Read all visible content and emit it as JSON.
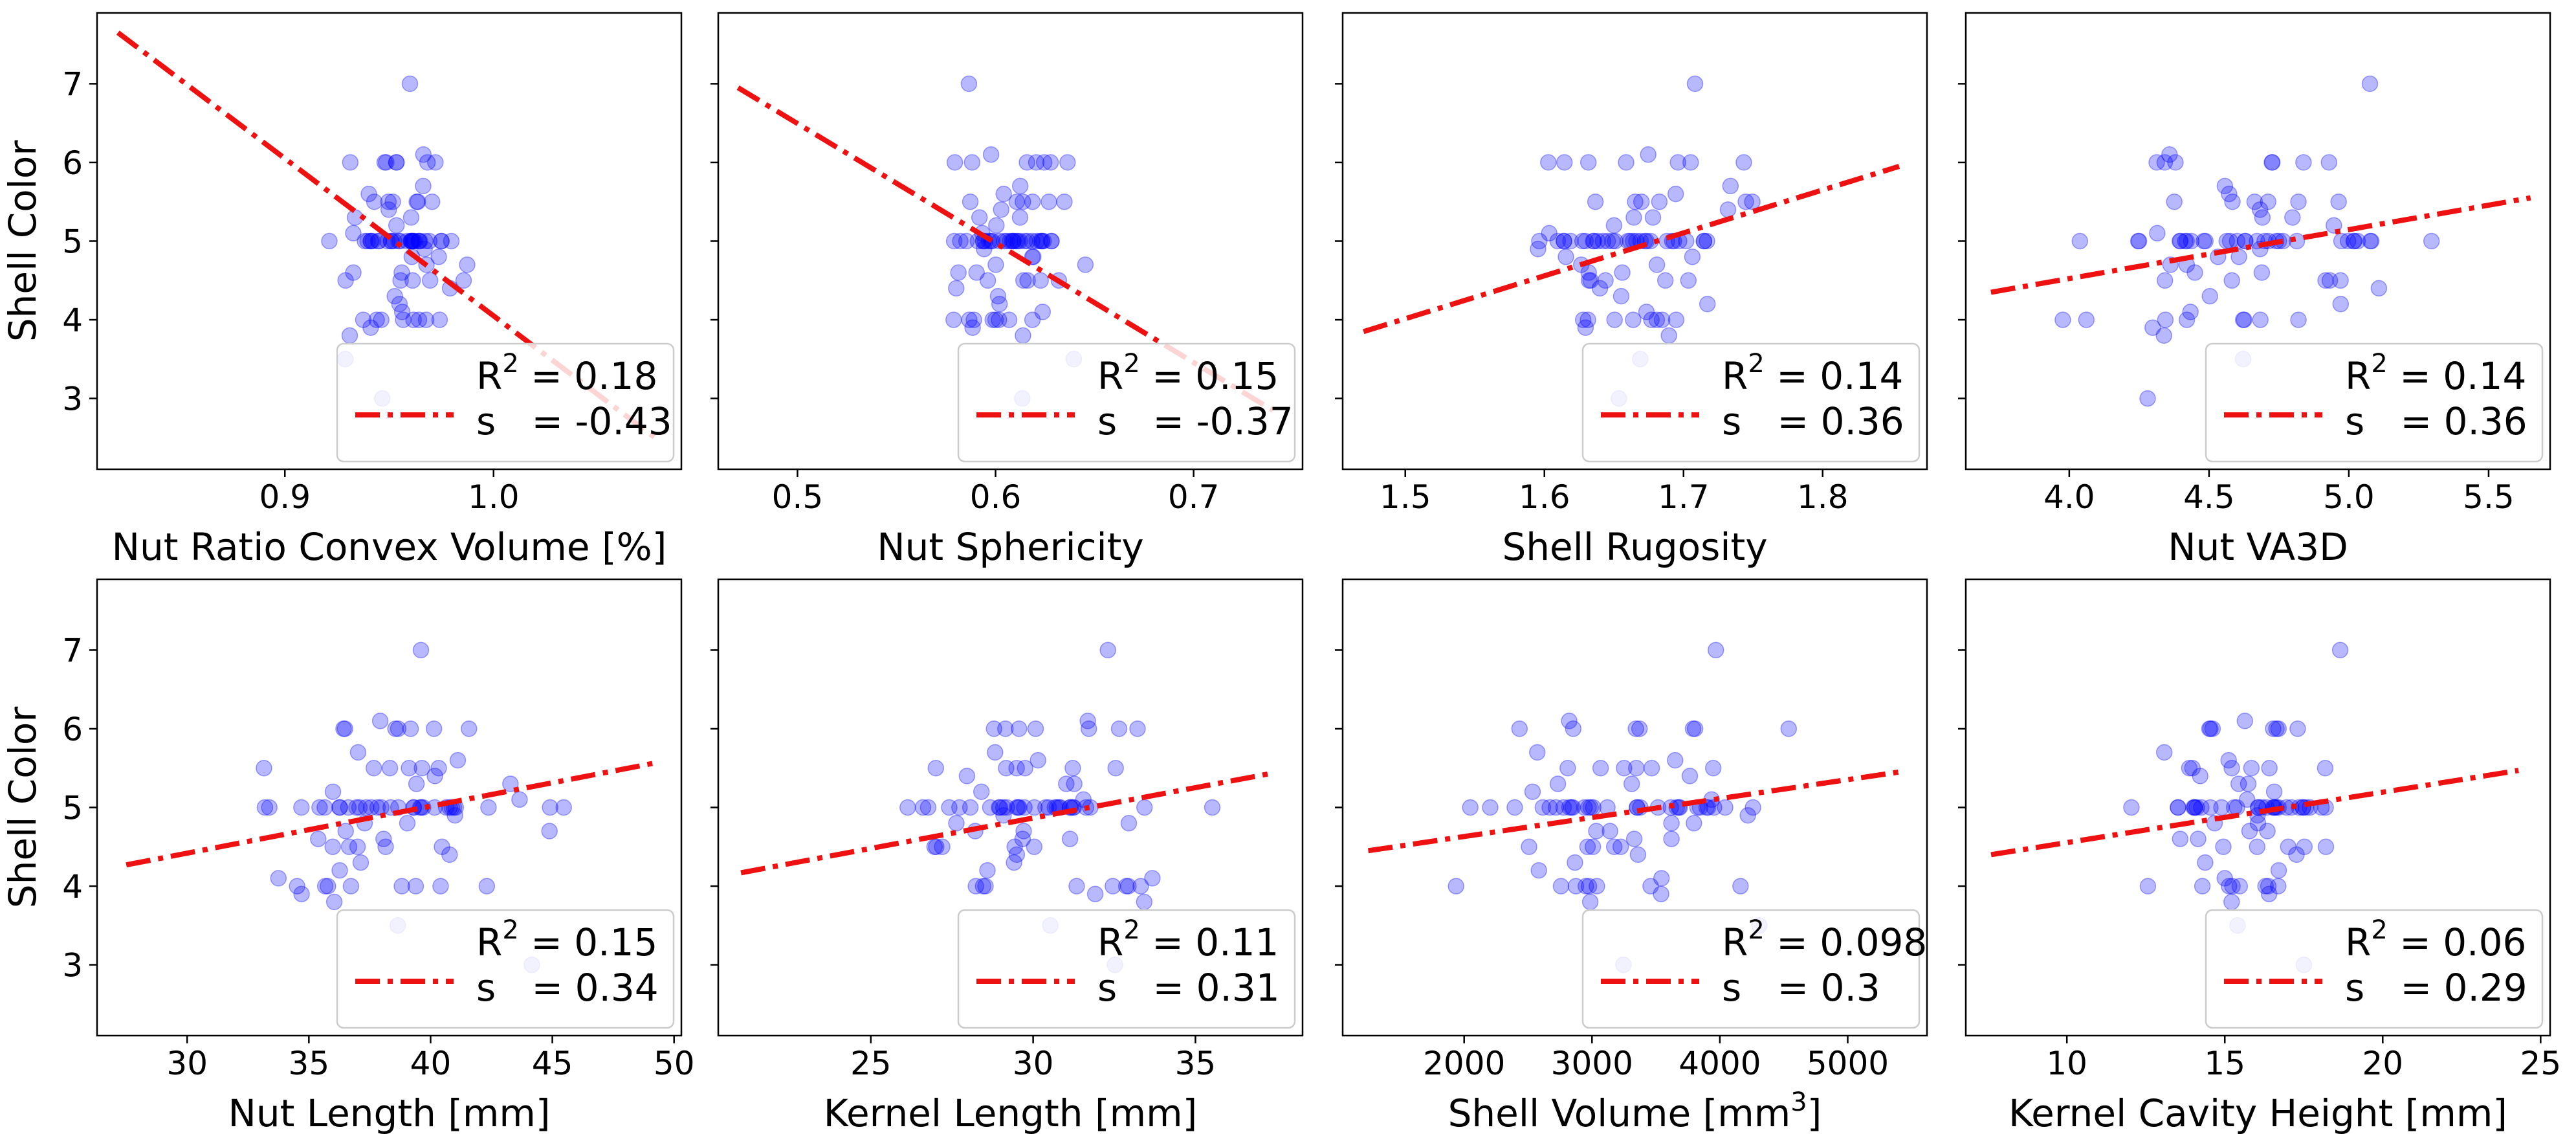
{
  "figure": {
    "ylabel": "Shell Color",
    "colors": {
      "points": "#0000ff",
      "fit_line": "#ee1111",
      "axes": "#000000",
      "legend_border": "#cccccc"
    }
  },
  "chart_data": [
    {
      "type": "scatter",
      "xlabel": "Nut Ratio Convex Volume [%]",
      "ylabel": "Shell Color",
      "xlim": [
        0.81,
        1.09
      ],
      "ylim": [
        2.1,
        7.9
      ],
      "xticks": [
        {
          "v": 0.9,
          "label": "0.9"
        },
        {
          "v": 1.0,
          "label": "1.0"
        }
      ],
      "yticks": [
        {
          "v": 3,
          "label": "3"
        },
        {
          "v": 4,
          "label": "4"
        },
        {
          "v": 5,
          "label": "5"
        },
        {
          "v": 6,
          "label": "6"
        },
        {
          "v": 7,
          "label": "7"
        }
      ],
      "legend": {
        "r2_value": "0.18",
        "s_value": "-0.43",
        "position": "lower-right"
      },
      "fit": {
        "x": [
          0.82,
          1.08
        ],
        "y": [
          7.65,
          2.45
        ]
      },
      "points": {
        "x_center": 0.955,
        "x_spread": 0.018,
        "y_values": [
          7,
          6,
          6,
          6,
          6,
          6,
          6,
          6,
          6.1,
          5.7,
          5.6,
          5.5,
          5.5,
          5.5,
          5.5,
          5.5,
          5.5,
          5.4,
          5.3,
          5.3,
          5.2,
          5.1,
          5,
          5,
          5,
          5,
          5,
          5,
          5,
          5,
          5,
          5,
          5,
          5,
          5,
          5,
          5,
          5,
          5,
          5,
          5,
          5,
          5,
          5,
          5,
          5,
          5,
          5,
          5,
          5,
          5,
          5,
          4.9,
          4.8,
          4.8,
          4.7,
          4.7,
          4.6,
          4.6,
          4.5,
          4.5,
          4.5,
          4.5,
          4.5,
          4.4,
          4.3,
          4.2,
          4.1,
          4,
          4,
          4,
          4,
          4,
          4,
          4,
          4,
          3.9,
          3.8,
          3.5,
          3
        ]
      }
    },
    {
      "type": "scatter",
      "xlabel": "Nut Sphericity",
      "ylabel": "",
      "xlim": [
        0.46,
        0.755
      ],
      "ylim": [
        2.1,
        7.9
      ],
      "xticks": [
        {
          "v": 0.5,
          "label": "0.5"
        },
        {
          "v": 0.6,
          "label": "0.6"
        },
        {
          "v": 0.7,
          "label": "0.7"
        }
      ],
      "yticks": [
        {
          "v": 3,
          "label": "3"
        },
        {
          "v": 4,
          "label": "4"
        },
        {
          "v": 5,
          "label": "5"
        },
        {
          "v": 6,
          "label": "6"
        },
        {
          "v": 7,
          "label": "7"
        }
      ],
      "legend": {
        "r2_value": "0.15",
        "s_value": "-0.37",
        "position": "lower-right"
      },
      "fit": {
        "x": [
          0.47,
          0.74
        ],
        "y": [
          6.95,
          2.85
        ]
      },
      "points": {
        "x_center": 0.605,
        "x_spread": 0.02,
        "y_values": [
          7,
          6,
          6,
          6,
          6,
          6,
          6,
          6,
          6.1,
          5.7,
          5.6,
          5.5,
          5.5,
          5.5,
          5.5,
          5.5,
          5.5,
          5.4,
          5.3,
          5.3,
          5.2,
          5.1,
          5,
          5,
          5,
          5,
          5,
          5,
          5,
          5,
          5,
          5,
          5,
          5,
          5,
          5,
          5,
          5,
          5,
          5,
          5,
          5,
          5,
          5,
          5,
          5,
          5,
          5,
          5,
          5,
          5,
          5,
          4.9,
          4.8,
          4.8,
          4.7,
          4.7,
          4.6,
          4.6,
          4.5,
          4.5,
          4.5,
          4.5,
          4.5,
          4.4,
          4.3,
          4.2,
          4.1,
          4,
          4,
          4,
          4,
          4,
          4,
          4,
          4,
          3.9,
          3.8,
          3.5,
          3
        ]
      }
    },
    {
      "type": "scatter",
      "xlabel": "Shell Rugosity",
      "ylabel": "",
      "xlim": [
        1.455,
        1.875
      ],
      "ylim": [
        2.1,
        7.9
      ],
      "xticks": [
        {
          "v": 1.5,
          "label": "1.5"
        },
        {
          "v": 1.6,
          "label": "1.6"
        },
        {
          "v": 1.7,
          "label": "1.7"
        },
        {
          "v": 1.8,
          "label": "1.8"
        }
      ],
      "yticks": [
        {
          "v": 3,
          "label": "3"
        },
        {
          "v": 4,
          "label": "4"
        },
        {
          "v": 5,
          "label": "5"
        },
        {
          "v": 6,
          "label": "6"
        },
        {
          "v": 7,
          "label": "7"
        }
      ],
      "legend": {
        "r2_value": "0.14",
        "s_value": "0.36",
        "position": "lower-right"
      },
      "fit": {
        "x": [
          1.47,
          1.855
        ],
        "y": [
          3.85,
          5.95
        ]
      },
      "points": {
        "x_center": 1.665,
        "x_spread": 0.04,
        "y_values": [
          7,
          6,
          6,
          6,
          6,
          6,
          6,
          6,
          6.1,
          5.7,
          5.6,
          5.5,
          5.5,
          5.5,
          5.5,
          5.5,
          5.5,
          5.4,
          5.3,
          5.3,
          5.2,
          5.1,
          5,
          5,
          5,
          5,
          5,
          5,
          5,
          5,
          5,
          5,
          5,
          5,
          5,
          5,
          5,
          5,
          5,
          5,
          5,
          5,
          5,
          5,
          5,
          5,
          5,
          5,
          5,
          5,
          5,
          5,
          4.9,
          4.8,
          4.8,
          4.7,
          4.7,
          4.6,
          4.6,
          4.5,
          4.5,
          4.5,
          4.5,
          4.5,
          4.4,
          4.3,
          4.2,
          4.1,
          4,
          4,
          4,
          4,
          4,
          4,
          4,
          4,
          3.9,
          3.8,
          3.5,
          3
        ]
      }
    },
    {
      "type": "scatter",
      "xlabel": "Nut VA3D",
      "ylabel": "",
      "xlim": [
        3.63,
        5.72
      ],
      "ylim": [
        2.1,
        7.9
      ],
      "xticks": [
        {
          "v": 4.0,
          "label": "4.0"
        },
        {
          "v": 4.5,
          "label": "4.5"
        },
        {
          "v": 5.0,
          "label": "5.0"
        },
        {
          "v": 5.5,
          "label": "5.5"
        }
      ],
      "yticks": [
        {
          "v": 3,
          "label": "3"
        },
        {
          "v": 4,
          "label": "4"
        },
        {
          "v": 5,
          "label": "5"
        },
        {
          "v": 6,
          "label": "6"
        },
        {
          "v": 7,
          "label": "7"
        }
      ],
      "legend": {
        "r2_value": "0.14",
        "s_value": "0.36",
        "position": "lower-right"
      },
      "fit": {
        "x": [
          3.72,
          5.65
        ],
        "y": [
          4.35,
          5.55
        ]
      },
      "points": {
        "x_center": 4.6,
        "x_spread": 0.32,
        "y_values": [
          7,
          6,
          6,
          6,
          6,
          6,
          6,
          6,
          6.1,
          5.7,
          5.6,
          5.5,
          5.5,
          5.5,
          5.5,
          5.5,
          5.5,
          5.4,
          5.3,
          5.3,
          5.2,
          5.1,
          5,
          5,
          5,
          5,
          5,
          5,
          5,
          5,
          5,
          5,
          5,
          5,
          5,
          5,
          5,
          5,
          5,
          5,
          5,
          5,
          5,
          5,
          5,
          5,
          5,
          5,
          5,
          5,
          5,
          5,
          4.9,
          4.8,
          4.8,
          4.7,
          4.7,
          4.6,
          4.6,
          4.5,
          4.5,
          4.5,
          4.5,
          4.5,
          4.4,
          4.3,
          4.2,
          4.1,
          4,
          4,
          4,
          4,
          4,
          4,
          4,
          4,
          3.9,
          3.8,
          3.5,
          3
        ]
      }
    },
    {
      "type": "scatter",
      "xlabel": "Nut Length [mm]",
      "ylabel": "Shell Color",
      "xlim": [
        26.3,
        50.3
      ],
      "ylim": [
        2.1,
        7.9
      ],
      "xticks": [
        {
          "v": 30,
          "label": "30"
        },
        {
          "v": 35,
          "label": "35"
        },
        {
          "v": 40,
          "label": "40"
        },
        {
          "v": 45,
          "label": "45"
        },
        {
          "v": 50,
          "label": "50"
        }
      ],
      "yticks": [
        {
          "v": 3,
          "label": "3"
        },
        {
          "v": 4,
          "label": "4"
        },
        {
          "v": 5,
          "label": "5"
        },
        {
          "v": 6,
          "label": "6"
        },
        {
          "v": 7,
          "label": "7"
        }
      ],
      "legend": {
        "r2_value": "0.15",
        "s_value": "0.34",
        "position": "lower-right"
      },
      "fit": {
        "x": [
          27.5,
          49.3
        ],
        "y": [
          4.27,
          5.57
        ]
      },
      "points": {
        "x_center": 38.5,
        "x_spread": 3.8,
        "y_values": [
          7,
          6,
          6,
          6,
          6,
          6,
          6,
          6,
          6.1,
          5.7,
          5.6,
          5.5,
          5.5,
          5.5,
          5.5,
          5.5,
          5.5,
          5.4,
          5.3,
          5.3,
          5.2,
          5.1,
          5,
          5,
          5,
          5,
          5,
          5,
          5,
          5,
          5,
          5,
          5,
          5,
          5,
          5,
          5,
          5,
          5,
          5,
          5,
          5,
          5,
          5,
          5,
          5,
          5,
          5,
          5,
          5,
          5,
          5,
          4.9,
          4.8,
          4.8,
          4.7,
          4.7,
          4.6,
          4.6,
          4.5,
          4.5,
          4.5,
          4.5,
          4.5,
          4.4,
          4.3,
          4.2,
          4.1,
          4,
          4,
          4,
          4,
          4,
          4,
          4,
          4,
          3.9,
          3.8,
          3.5,
          3
        ]
      }
    },
    {
      "type": "scatter",
      "xlabel": "Kernel Length [mm]",
      "ylabel": "",
      "xlim": [
        20.3,
        38.3
      ],
      "ylim": [
        2.1,
        7.9
      ],
      "xticks": [
        {
          "v": 25,
          "label": "25"
        },
        {
          "v": 30,
          "label": "30"
        },
        {
          "v": 35,
          "label": "35"
        }
      ],
      "yticks": [
        {
          "v": 3,
          "label": "3"
        },
        {
          "v": 4,
          "label": "4"
        },
        {
          "v": 5,
          "label": "5"
        },
        {
          "v": 6,
          "label": "6"
        },
        {
          "v": 7,
          "label": "7"
        }
      ],
      "legend": {
        "r2_value": "0.11",
        "s_value": "0.31",
        "position": "lower-right"
      },
      "fit": {
        "x": [
          21,
          37.3
        ],
        "y": [
          4.17,
          5.43
        ]
      },
      "points": {
        "x_center": 30.5,
        "x_spread": 2.6,
        "y_values": [
          7,
          6,
          6,
          6,
          6,
          6,
          6,
          6,
          6.1,
          5.7,
          5.6,
          5.5,
          5.5,
          5.5,
          5.5,
          5.5,
          5.5,
          5.4,
          5.3,
          5.3,
          5.2,
          5.1,
          5,
          5,
          5,
          5,
          5,
          5,
          5,
          5,
          5,
          5,
          5,
          5,
          5,
          5,
          5,
          5,
          5,
          5,
          5,
          5,
          5,
          5,
          5,
          5,
          5,
          5,
          5,
          5,
          5,
          5,
          4.9,
          4.8,
          4.8,
          4.7,
          4.7,
          4.6,
          4.6,
          4.5,
          4.5,
          4.5,
          4.5,
          4.5,
          4.4,
          4.3,
          4.2,
          4.1,
          4,
          4,
          4,
          4,
          4,
          4,
          4,
          4,
          3.9,
          3.8,
          3.5,
          3
        ]
      }
    },
    {
      "type": "scatter",
      "xlabel": "Shell Volume [mm",
      "xlabel_sup": "3",
      "xlabel_suffix": "]",
      "ylabel": "",
      "xlim": [
        1050,
        5620
      ],
      "ylim": [
        2.1,
        7.9
      ],
      "xticks": [
        {
          "v": 2000,
          "label": "2000"
        },
        {
          "v": 3000,
          "label": "3000"
        },
        {
          "v": 4000,
          "label": "4000"
        },
        {
          "v": 5000,
          "label": "5000"
        }
      ],
      "yticks": [
        {
          "v": 3,
          "label": "3"
        },
        {
          "v": 4,
          "label": "4"
        },
        {
          "v": 5,
          "label": "5"
        },
        {
          "v": 6,
          "label": "6"
        },
        {
          "v": 7,
          "label": "7"
        }
      ],
      "legend": {
        "r2_value": "0.098",
        "s_value": "0.3",
        "position": "lower-right"
      },
      "fit": {
        "x": [
          1250,
          5400
        ],
        "y": [
          4.45,
          5.45
        ]
      },
      "points": {
        "x_center": 3200,
        "x_spread": 700,
        "y_values": [
          7,
          6,
          6,
          6,
          6,
          6,
          6,
          6,
          6.1,
          5.7,
          5.6,
          5.5,
          5.5,
          5.5,
          5.5,
          5.5,
          5.5,
          5.4,
          5.3,
          5.3,
          5.2,
          5.1,
          5,
          5,
          5,
          5,
          5,
          5,
          5,
          5,
          5,
          5,
          5,
          5,
          5,
          5,
          5,
          5,
          5,
          5,
          5,
          5,
          5,
          5,
          5,
          5,
          5,
          5,
          5,
          5,
          5,
          5,
          4.9,
          4.8,
          4.8,
          4.7,
          4.7,
          4.6,
          4.6,
          4.5,
          4.5,
          4.5,
          4.5,
          4.5,
          4.4,
          4.3,
          4.2,
          4.1,
          4,
          4,
          4,
          4,
          4,
          4,
          4,
          4,
          3.9,
          3.8,
          3.5,
          3
        ]
      }
    },
    {
      "type": "scatter",
      "xlabel": "Kernel Cavity Height [mm]",
      "ylabel": "",
      "xlim": [
        6.8,
        25.3
      ],
      "ylim": [
        2.1,
        7.9
      ],
      "xticks": [
        {
          "v": 10,
          "label": "10"
        },
        {
          "v": 15,
          "label": "15"
        },
        {
          "v": 20,
          "label": "20"
        },
        {
          "v": 25,
          "label": "25"
        }
      ],
      "yticks": [
        {
          "v": 3,
          "label": "3"
        },
        {
          "v": 4,
          "label": "4"
        },
        {
          "v": 5,
          "label": "5"
        },
        {
          "v": 6,
          "label": "6"
        },
        {
          "v": 7,
          "label": "7"
        }
      ],
      "legend": {
        "r2_value": "0.06",
        "s_value": "0.29",
        "position": "lower-right"
      },
      "fit": {
        "x": [
          7.6,
          24.3
        ],
        "y": [
          4.4,
          5.47
        ]
      },
      "points": {
        "x_center": 15.5,
        "x_spread": 2.1,
        "y_values": [
          7,
          6,
          6,
          6,
          6,
          6,
          6,
          6,
          6.1,
          5.7,
          5.6,
          5.5,
          5.5,
          5.5,
          5.5,
          5.5,
          5.5,
          5.4,
          5.3,
          5.3,
          5.2,
          5.1,
          5,
          5,
          5,
          5,
          5,
          5,
          5,
          5,
          5,
          5,
          5,
          5,
          5,
          5,
          5,
          5,
          5,
          5,
          5,
          5,
          5,
          5,
          5,
          5,
          5,
          5,
          5,
          5,
          5,
          5,
          4.9,
          4.8,
          4.8,
          4.7,
          4.7,
          4.6,
          4.6,
          4.5,
          4.5,
          4.5,
          4.5,
          4.5,
          4.4,
          4.3,
          4.2,
          4.1,
          4,
          4,
          4,
          4,
          4,
          4,
          4,
          4,
          3.9,
          3.8,
          3.5,
          3
        ]
      }
    }
  ]
}
